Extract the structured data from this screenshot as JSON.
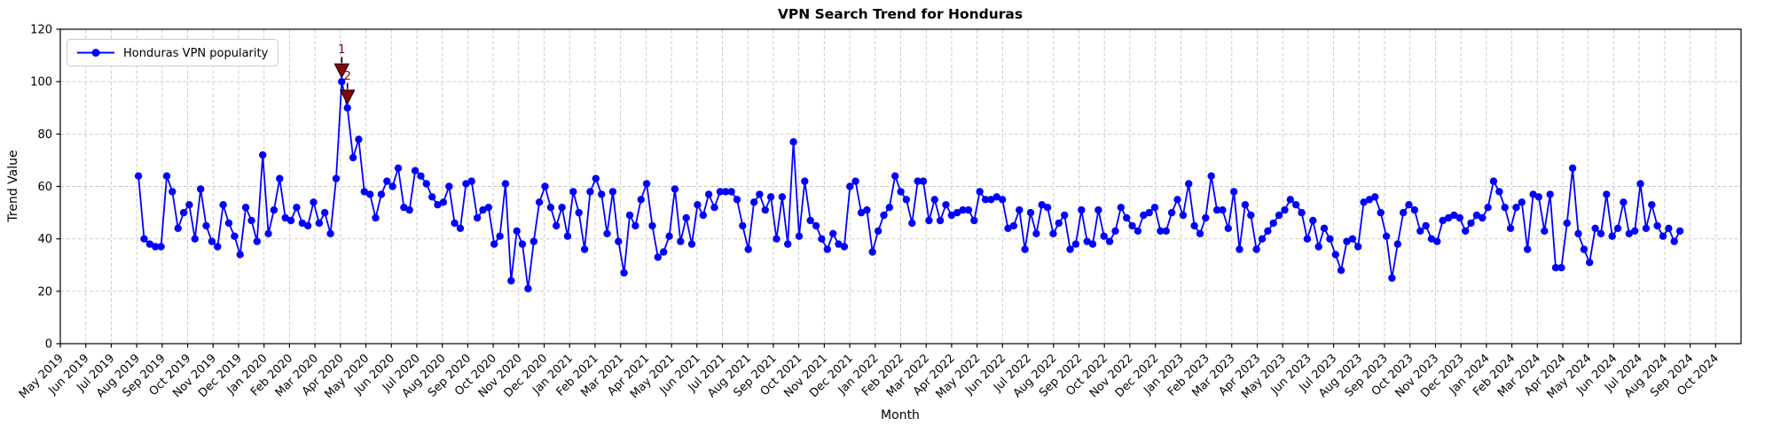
{
  "title": "VPN Search Trend for Honduras",
  "axes": {
    "xlabel": "Month",
    "ylabel": "Trend Value"
  },
  "legend": {
    "label": "Honduras VPN popularity",
    "position": "upper left"
  },
  "colors": {
    "line": "#0000ff",
    "marker": "#0000ff",
    "annotation": "#8b0000",
    "annotation_edge": "#000000",
    "grid": "#c6c6c6",
    "axis": "#000000",
    "background": "#ffffff",
    "legend_border": "#cccccc",
    "text": "#000000"
  },
  "annotations": [
    {
      "label": "1",
      "point_index": 36,
      "value": 100
    },
    {
      "label": "2",
      "point_index": 37,
      "value": 90
    }
  ],
  "chart_data": {
    "type": "line",
    "frequency": "weekly",
    "grid": true,
    "legend_position": "upper left",
    "ylim": [
      0,
      120
    ],
    "y_ticks": [
      0,
      20,
      40,
      60,
      80,
      100,
      120
    ],
    "x_axis_months": 66,
    "data_start_month_offset": 3.07,
    "data_end_month_offset": 63.6,
    "x_tick_labels": [
      "May 2019",
      "Jun 2019",
      "Jul 2019",
      "Aug 2019",
      "Sep 2019",
      "Oct 2019",
      "Nov 2019",
      "Dec 2019",
      "Jan 2020",
      "Feb 2020",
      "Mar 2020",
      "Apr 2020",
      "May 2020",
      "Jun 2020",
      "Jul 2020",
      "Aug 2020",
      "Sep 2020",
      "Oct 2020",
      "Nov 2020",
      "Dec 2020",
      "Jan 2021",
      "Feb 2021",
      "Mar 2021",
      "Apr 2021",
      "May 2021",
      "Jun 2021",
      "Jul 2021",
      "Aug 2021",
      "Sep 2021",
      "Oct 2021",
      "Nov 2021",
      "Dec 2021",
      "Jan 2022",
      "Feb 2022",
      "Mar 2022",
      "Apr 2022",
      "May 2022",
      "Jun 2022",
      "Jul 2022",
      "Aug 2022",
      "Sep 2022",
      "Oct 2022",
      "Nov 2022",
      "Dec 2022",
      "Jan 2023",
      "Feb 2023",
      "Mar 2023",
      "Apr 2023",
      "May 2023",
      "Jun 2023",
      "Jul 2023",
      "Aug 2023",
      "Sep 2023",
      "Oct 2023",
      "Nov 2023",
      "Dec 2023",
      "Jan 2024",
      "Feb 2024",
      "Mar 2024",
      "Apr 2024",
      "May 2024",
      "Jun 2024",
      "Jul 2024",
      "Aug 2024",
      "Sep 2024",
      "Oct 2024"
    ],
    "series": [
      {
        "name": "Honduras VPN popularity",
        "values": [
          64,
          40,
          38,
          37,
          37,
          64,
          58,
          44,
          50,
          53,
          40,
          59,
          45,
          39,
          37,
          53,
          46,
          41,
          34,
          52,
          47,
          39,
          72,
          42,
          51,
          63,
          48,
          47,
          52,
          46,
          45,
          54,
          46,
          50,
          42,
          63,
          100,
          90,
          71,
          78,
          58,
          57,
          48,
          57,
          62,
          60,
          67,
          52,
          51,
          66,
          64,
          61,
          56,
          53,
          54,
          60,
          46,
          44,
          61,
          62,
          48,
          51,
          52,
          38,
          41,
          61,
          24,
          43,
          38,
          21,
          39,
          54,
          60,
          52,
          45,
          52,
          41,
          58,
          50,
          36,
          58,
          63,
          57,
          42,
          58,
          39,
          27,
          49,
          45,
          55,
          61,
          45,
          33,
          35,
          41,
          59,
          39,
          48,
          38,
          53,
          49,
          57,
          52,
          58,
          58,
          58,
          55,
          45,
          36,
          54,
          57,
          51,
          56,
          40,
          56,
          38,
          77,
          41,
          62,
          47,
          45,
          40,
          36,
          42,
          38,
          37,
          60,
          62,
          50,
          51,
          35,
          43,
          49,
          52,
          64,
          58,
          55,
          46,
          62,
          62,
          47,
          55,
          47,
          53,
          49,
          50,
          51,
          51,
          47,
          58,
          55,
          55,
          56,
          55,
          44,
          45,
          51,
          36,
          50,
          42,
          53,
          52,
          42,
          46,
          49,
          36,
          38,
          51,
          39,
          38,
          51,
          41,
          39,
          43,
          52,
          48,
          45,
          43,
          49,
          50,
          52,
          43,
          43,
          50,
          55,
          49,
          61,
          45,
          42,
          48,
          64,
          51,
          51,
          44,
          58,
          36,
          53,
          49,
          36,
          40,
          43,
          46,
          49,
          51,
          55,
          53,
          50,
          40,
          47,
          37,
          44,
          40,
          34,
          28,
          39,
          40,
          37,
          54,
          55,
          56,
          50,
          41,
          25,
          38,
          50,
          53,
          51,
          43,
          45,
          40,
          39,
          47,
          48,
          49,
          48,
          43,
          46,
          49,
          48,
          52,
          62,
          58,
          52,
          44,
          52,
          54,
          36,
          57,
          56,
          43,
          57,
          29,
          29,
          46,
          67,
          42,
          36,
          31,
          44,
          42,
          57,
          41,
          44,
          54,
          42,
          43,
          61,
          44,
          53,
          45,
          41,
          44,
          39,
          43
        ]
      }
    ]
  }
}
